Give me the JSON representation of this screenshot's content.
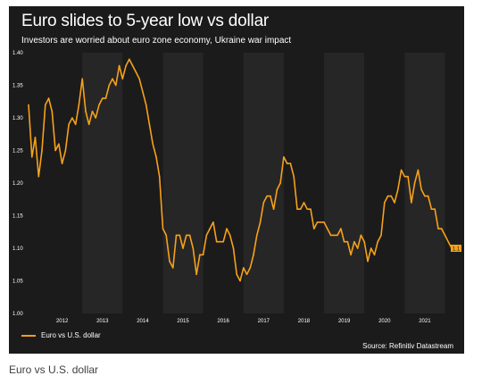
{
  "title": "Euro slides to 5-year low vs dollar",
  "subtitle": "Investors are worried about euro zone economy, Ukraine war impact",
  "legend_label": "Euro vs U.S. dollar",
  "source": "Source: Refinitiv Datastream",
  "caption": "Euro vs U.S. dollar",
  "end_label": "1.1",
  "colors": {
    "background": "#1b1b1b",
    "line": "#f7a11a",
    "alt_band": "#262626",
    "text": "#ffffff"
  },
  "chart_data": {
    "type": "line",
    "title": "Euro slides to 5-year low vs dollar",
    "subtitle": "Investors are worried about euro zone economy, Ukraine war impact",
    "xlabel": "",
    "ylabel": "",
    "x_ticks": [
      "2012",
      "2013",
      "2014",
      "2015",
      "2016",
      "2017",
      "2018",
      "2019",
      "2020",
      "2021"
    ],
    "y_ticks": [
      "1.00",
      "1.05",
      "1.10",
      "1.15",
      "1.20",
      "1.25",
      "1.30",
      "1.35",
      "1.40"
    ],
    "ylim": [
      1.0,
      1.4
    ],
    "xlim": [
      "2011-09",
      "2022-03"
    ],
    "grid": false,
    "legend": "bottom-left",
    "series": [
      {
        "name": "Euro vs U.S. dollar",
        "x": [
          "2011-09",
          "2011-10",
          "2011-11",
          "2011-12",
          "2012-01",
          "2012-02",
          "2012-03",
          "2012-04",
          "2012-05",
          "2012-06",
          "2012-07",
          "2012-08",
          "2012-09",
          "2012-10",
          "2012-11",
          "2012-12",
          "2013-01",
          "2013-02",
          "2013-03",
          "2013-04",
          "2013-05",
          "2013-06",
          "2013-07",
          "2013-08",
          "2013-09",
          "2013-10",
          "2013-11",
          "2013-12",
          "2014-01",
          "2014-02",
          "2014-03",
          "2014-04",
          "2014-05",
          "2014-06",
          "2014-07",
          "2014-08",
          "2014-09",
          "2014-10",
          "2014-11",
          "2014-12",
          "2015-01",
          "2015-02",
          "2015-03",
          "2015-04",
          "2015-05",
          "2015-06",
          "2015-07",
          "2015-08",
          "2015-09",
          "2015-10",
          "2015-11",
          "2015-12",
          "2016-01",
          "2016-02",
          "2016-03",
          "2016-04",
          "2016-05",
          "2016-06",
          "2016-07",
          "2016-08",
          "2016-09",
          "2016-10",
          "2016-11",
          "2016-12",
          "2017-01",
          "2017-02",
          "2017-03",
          "2017-04",
          "2017-05",
          "2017-06",
          "2017-07",
          "2017-08",
          "2017-09",
          "2017-10",
          "2017-11",
          "2017-12",
          "2018-01",
          "2018-02",
          "2018-03",
          "2018-04",
          "2018-05",
          "2018-06",
          "2018-07",
          "2018-08",
          "2018-09",
          "2018-10",
          "2018-11",
          "2018-12",
          "2019-01",
          "2019-02",
          "2019-03",
          "2019-04",
          "2019-05",
          "2019-06",
          "2019-07",
          "2019-08",
          "2019-09",
          "2019-10",
          "2019-11",
          "2019-12",
          "2020-01",
          "2020-02",
          "2020-03",
          "2020-04",
          "2020-05",
          "2020-06",
          "2020-07",
          "2020-08",
          "2020-09",
          "2020-10",
          "2020-11",
          "2020-12",
          "2021-01",
          "2021-02",
          "2021-03",
          "2021-04",
          "2021-05",
          "2021-06",
          "2021-07",
          "2021-08",
          "2021-09",
          "2021-10",
          "2021-11",
          "2021-12",
          "2022-01",
          "2022-02",
          "2022-03"
        ],
        "values": [
          1.32,
          1.24,
          1.27,
          1.21,
          1.25,
          1.32,
          1.33,
          1.31,
          1.25,
          1.26,
          1.23,
          1.25,
          1.29,
          1.3,
          1.29,
          1.32,
          1.36,
          1.31,
          1.29,
          1.31,
          1.3,
          1.32,
          1.33,
          1.33,
          1.35,
          1.36,
          1.35,
          1.38,
          1.36,
          1.38,
          1.39,
          1.38,
          1.37,
          1.36,
          1.34,
          1.32,
          1.29,
          1.26,
          1.24,
          1.21,
          1.13,
          1.12,
          1.08,
          1.07,
          1.12,
          1.12,
          1.1,
          1.12,
          1.12,
          1.1,
          1.06,
          1.09,
          1.09,
          1.12,
          1.13,
          1.14,
          1.11,
          1.11,
          1.11,
          1.13,
          1.12,
          1.1,
          1.06,
          1.05,
          1.07,
          1.06,
          1.07,
          1.09,
          1.12,
          1.14,
          1.17,
          1.18,
          1.18,
          1.16,
          1.19,
          1.2,
          1.24,
          1.23,
          1.23,
          1.21,
          1.16,
          1.16,
          1.17,
          1.16,
          1.16,
          1.13,
          1.14,
          1.14,
          1.14,
          1.13,
          1.12,
          1.12,
          1.12,
          1.13,
          1.11,
          1.11,
          1.09,
          1.11,
          1.1,
          1.12,
          1.11,
          1.08,
          1.1,
          1.09,
          1.11,
          1.12,
          1.17,
          1.18,
          1.18,
          1.17,
          1.19,
          1.22,
          1.21,
          1.21,
          1.17,
          1.2,
          1.22,
          1.19,
          1.18,
          1.18,
          1.16,
          1.16,
          1.13,
          1.13,
          1.12,
          1.11,
          1.1
        ]
      }
    ]
  }
}
